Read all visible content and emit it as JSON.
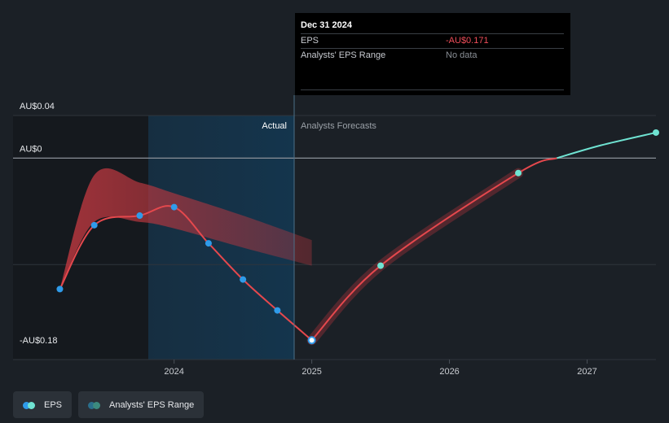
{
  "tooltip": {
    "date": "Dec 31 2024",
    "rows": [
      {
        "label": "EPS",
        "value": "-AU$0.171"
      },
      {
        "label": "Analysts' EPS Range",
        "value": "No data"
      }
    ]
  },
  "regions": {
    "actual": "Actual",
    "forecast": "Analysts Forecasts"
  },
  "legend": [
    {
      "label": "EPS"
    },
    {
      "label": "Analysts' EPS Range"
    }
  ],
  "colors": {
    "eps_actual": "#e5484d",
    "eps_point": "#2f9bea",
    "eps_future": "#6fe3d2",
    "range_fill": "#b9373f",
    "background": "#1b2026",
    "actual_shade": "#14354d"
  },
  "chart_data": {
    "type": "line",
    "y_tick_labels": [
      "AU$0.04",
      "AU$0",
      "-AU$0.18"
    ],
    "y_ticks": [
      0.04,
      0,
      -0.18
    ],
    "x_tick_labels": [
      "2024",
      "2025",
      "2026",
      "2027"
    ],
    "x_ticks": [
      2024,
      2025,
      2026,
      2027
    ],
    "xlim": [
      2022.83,
      2027.5
    ],
    "ylim": [
      -0.18,
      0.04
    ],
    "series": [
      {
        "name": "EPS",
        "points": [
          {
            "x": 2023.17,
            "y": -0.123
          },
          {
            "x": 2023.42,
            "y": -0.063
          },
          {
            "x": 2023.75,
            "y": -0.054
          },
          {
            "x": 2024.0,
            "y": -0.046
          },
          {
            "x": 2024.25,
            "y": -0.08
          },
          {
            "x": 2024.5,
            "y": -0.114
          },
          {
            "x": 2024.75,
            "y": -0.143
          },
          {
            "x": 2025.0,
            "y": -0.171
          }
        ]
      },
      {
        "name": "EPS forecast",
        "points": [
          {
            "x": 2025.0,
            "y": -0.171
          },
          {
            "x": 2025.5,
            "y": -0.101
          },
          {
            "x": 2026.5,
            "y": -0.014
          },
          {
            "x": 2027.5,
            "y": 0.024
          }
        ]
      }
    ],
    "range_band": [
      {
        "x": 2023.17,
        "lo": -0.123,
        "hi": -0.123
      },
      {
        "x": 2023.42,
        "lo": -0.06,
        "hi": -0.016
      },
      {
        "x": 2023.75,
        "lo": -0.06,
        "hi": -0.023
      },
      {
        "x": 2024.0,
        "lo": -0.066,
        "hi": -0.033
      },
      {
        "x": 2024.5,
        "lo": -0.084,
        "hi": -0.054
      },
      {
        "x": 2025.0,
        "lo": -0.101,
        "hi": -0.077
      }
    ],
    "grid": true,
    "legend_position": "bottom-left"
  }
}
